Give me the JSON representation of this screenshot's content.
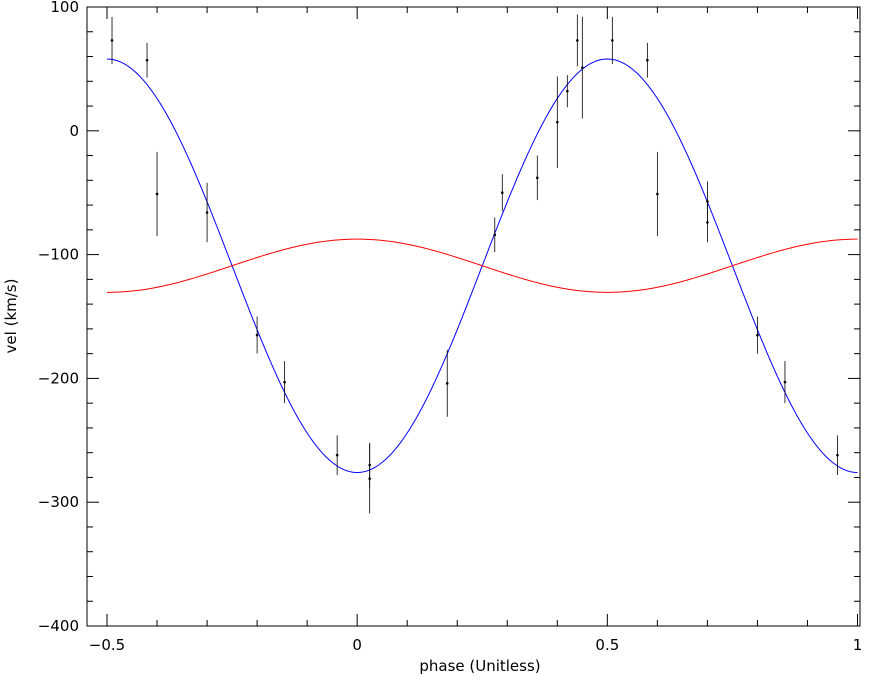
{
  "chart_data": {
    "type": "line",
    "xlabel": "phase (Unitless)",
    "ylabel": "vel (km/s)",
    "xlim": [
      -0.54,
      1.005
    ],
    "ylim": [
      -400,
      100
    ],
    "xticks": [
      -0.5,
      0,
      0.5,
      1
    ],
    "xtick_labels": [
      "−0.5",
      "0",
      "0.5",
      "1"
    ],
    "yticks": [
      -400,
      -300,
      -200,
      -100,
      0,
      100
    ],
    "ytick_labels": [
      "−400",
      "−300",
      "−200",
      "−100",
      "0",
      "100"
    ],
    "grid": false,
    "series": [
      {
        "kind": "errorbar",
        "color": "#000000",
        "points": [
          {
            "x": -0.49,
            "y": 73,
            "err": 19
          },
          {
            "x": -0.42,
            "y": 57,
            "err": 14
          },
          {
            "x": -0.4,
            "y": -51,
            "err": 34
          },
          {
            "x": -0.3,
            "y": -66,
            "err": 24
          },
          {
            "x": -0.2,
            "y": -165,
            "err": 15
          },
          {
            "x": -0.145,
            "y": -203,
            "err": 17
          },
          {
            "x": -0.04,
            "y": -262,
            "err": 16
          },
          {
            "x": 0.025,
            "y": -281,
            "err": 28
          },
          {
            "x": 0.025,
            "y": -270,
            "err": 18
          },
          {
            "x": 0.18,
            "y": -204,
            "err": 27
          },
          {
            "x": 0.275,
            "y": -84,
            "err": 14
          },
          {
            "x": 0.29,
            "y": -50,
            "err": 15
          },
          {
            "x": 0.36,
            "y": -38,
            "err": 18
          },
          {
            "x": 0.4,
            "y": 7,
            "err": 37
          },
          {
            "x": 0.42,
            "y": 32,
            "err": 13
          },
          {
            "x": 0.44,
            "y": 73,
            "err": 21
          },
          {
            "x": 0.45,
            "y": 51,
            "err": 41
          },
          {
            "x": 0.51,
            "y": 73,
            "err": 19
          },
          {
            "x": 0.58,
            "y": 57,
            "err": 14
          },
          {
            "x": 0.6,
            "y": -51,
            "err": 34
          },
          {
            "x": 0.7,
            "y": -57,
            "err": 16
          },
          {
            "x": 0.7,
            "y": -74,
            "err": 16
          },
          {
            "x": 0.8,
            "y": -165,
            "err": 15
          },
          {
            "x": 0.855,
            "y": -203,
            "err": 17
          },
          {
            "x": 0.96,
            "y": -262,
            "err": 16
          }
        ]
      },
      {
        "kind": "curve",
        "color": "#0000ff",
        "model": {
          "gamma": -109,
          "amplitude": 167,
          "cos_sign": -1,
          "x_range": [
            -0.5,
            1
          ]
        }
      },
      {
        "kind": "curve",
        "color": "#ff0000",
        "model": {
          "gamma": -109,
          "amplitude": 21.5,
          "cos_sign": 1,
          "x_range": [
            -0.5,
            1
          ]
        }
      }
    ]
  }
}
